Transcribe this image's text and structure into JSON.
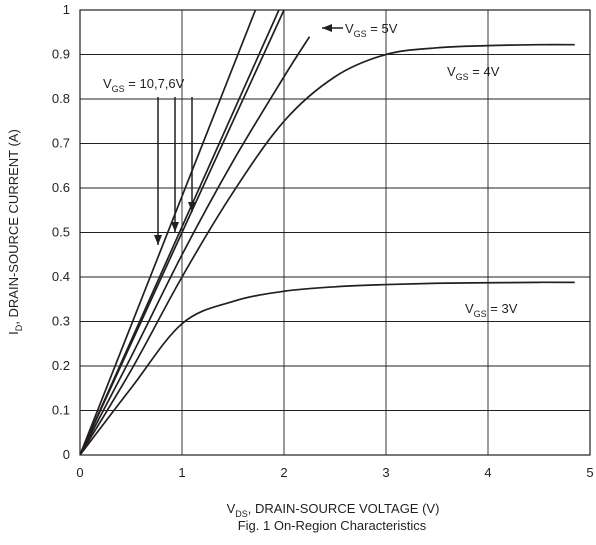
{
  "chart_data": {
    "type": "line",
    "caption": "Fig. 1 On-Region Characteristics",
    "xlabel": {
      "sym": "V",
      "sub": "DS",
      "text": ", DRAIN-SOURCE VOLTAGE (V)"
    },
    "ylabel": {
      "sym": "I",
      "sub": "D",
      "text": ", DRAIN-SOURCE CURRENT (A)"
    },
    "xlim": [
      0,
      5
    ],
    "ylim": [
      0,
      1
    ],
    "xticks": [
      0,
      1,
      2,
      3,
      4,
      5
    ],
    "xtick_labels": [
      "0",
      "1",
      "2",
      "3",
      "4",
      "5"
    ],
    "yticks": [
      0,
      0.1,
      0.2,
      0.3,
      0.4,
      0.5,
      0.6,
      0.7,
      0.8,
      0.9,
      1
    ],
    "ytick_labels": [
      "0",
      "0.1",
      "0.2",
      "0.3",
      "0.4",
      "0.5",
      "0.6",
      "0.7",
      "0.8",
      "0.9",
      "1"
    ],
    "grid": true,
    "series": [
      {
        "key": "vgs10",
        "x": [
          0,
          1.72
        ],
        "y": [
          0,
          1
        ]
      },
      {
        "key": "vgs7",
        "x": [
          0,
          1.95
        ],
        "y": [
          0,
          1
        ]
      },
      {
        "key": "vgs6",
        "x": [
          0,
          2.0
        ],
        "y": [
          0,
          1
        ]
      },
      {
        "key": "vgs5",
        "x": [
          0,
          0.5,
          1.0,
          1.5,
          2.0,
          2.25
        ],
        "y": [
          0,
          0.22,
          0.45,
          0.66,
          0.85,
          0.94
        ]
      },
      {
        "key": "vgs4",
        "x": [
          0,
          0.5,
          1.0,
          1.5,
          2.0,
          2.5,
          3.0,
          3.5,
          4.0,
          4.5,
          4.85
        ],
        "y": [
          0,
          0.19,
          0.4,
          0.59,
          0.75,
          0.85,
          0.9,
          0.915,
          0.92,
          0.922,
          0.922
        ]
      },
      {
        "key": "vgs3",
        "x": [
          0,
          0.5,
          1.0,
          1.5,
          2.0,
          2.5,
          3.0,
          3.5,
          4.0,
          4.5,
          4.85
        ],
        "y": [
          0,
          0.15,
          0.295,
          0.345,
          0.368,
          0.378,
          0.383,
          0.386,
          0.387,
          0.388,
          0.388
        ]
      }
    ],
    "annotations": [
      {
        "sym": "V",
        "sub": "GS",
        "text": " = 10,7,6V"
      },
      {
        "sym": "V",
        "sub": "GS",
        "text": " = 5V"
      },
      {
        "sym": "V",
        "sub": "GS",
        "text": " = 4V"
      },
      {
        "sym": "V",
        "sub": "GS",
        "text": " = 3V"
      }
    ],
    "colors": {
      "line": "#231f20",
      "background": "#ffffff"
    }
  }
}
